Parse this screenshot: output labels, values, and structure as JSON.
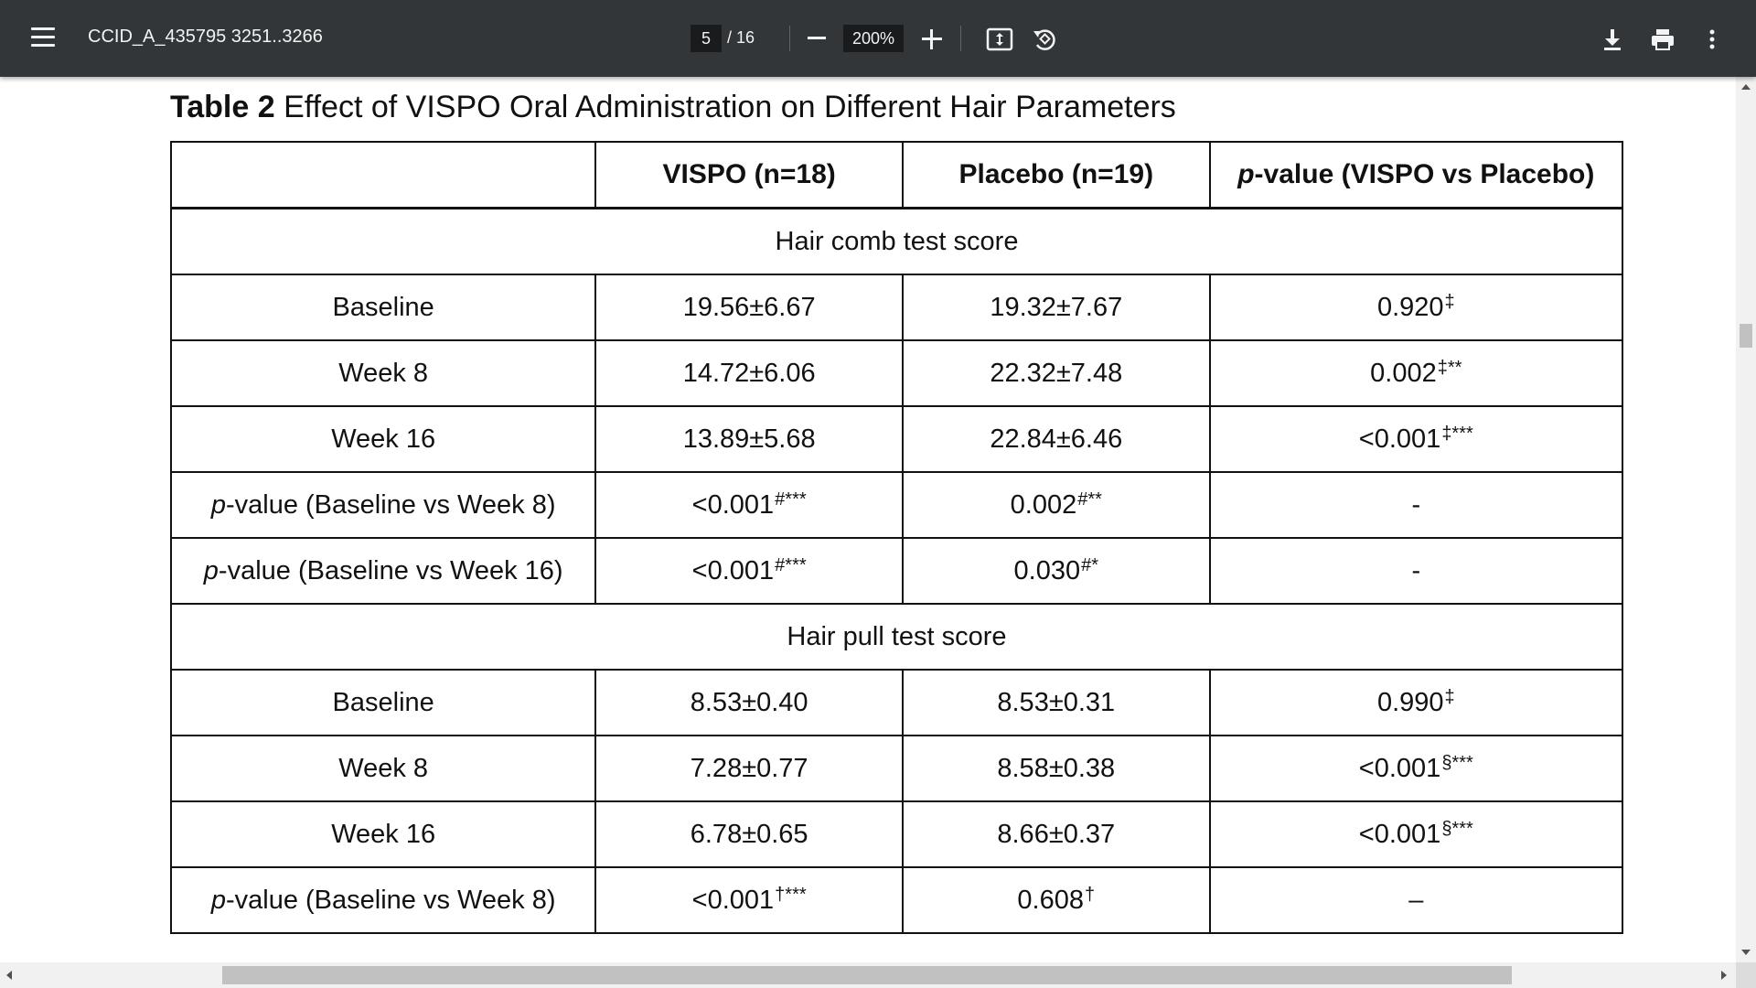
{
  "toolbar": {
    "doc_title": "CCID_A_435795 3251..3266",
    "page_current": "5",
    "page_total": "/ 16",
    "zoom": "200%"
  },
  "icons": [
    "menu-icon",
    "zoom-out-icon",
    "zoom-in-icon",
    "fit-page-icon",
    "rotate-icon",
    "download-icon",
    "print-icon",
    "more-vert-icon"
  ],
  "colors": {
    "toolbar_bg": "#323639",
    "toolbar_text": "#f1f3f4",
    "input_bg": "#191b1c"
  },
  "table": {
    "caption_label": "Table 2",
    "caption_text": "Effect of VISPO Oral Administration on Different Hair Parameters",
    "headers": [
      "",
      "VISPO (n=18)",
      "Placebo (n=19)",
      "p-value (VISPO vs Placebo)"
    ],
    "sections": [
      {
        "title": "Hair comb test score",
        "rows": [
          {
            "label": "Baseline",
            "vispo": "19.56±6.67",
            "vispo_sup": "",
            "placebo": "19.32±7.67",
            "placebo_sup": "",
            "p": "0.920",
            "p_sup": "‡"
          },
          {
            "label": "Week 8",
            "vispo": "14.72±6.06",
            "vispo_sup": "",
            "placebo": "22.32±7.48",
            "placebo_sup": "",
            "p": "0.002",
            "p_sup": "‡**"
          },
          {
            "label": "Week 16",
            "vispo": "13.89±5.68",
            "vispo_sup": "",
            "placebo": "22.84±6.46",
            "placebo_sup": "",
            "p": "<0.001",
            "p_sup": "‡***"
          },
          {
            "label_prefix": "p",
            "label": "-value (Baseline vs Week 8)",
            "vispo": "<0.001",
            "vispo_sup": "#***",
            "placebo": "0.002",
            "placebo_sup": "#**",
            "p": "-",
            "p_sup": ""
          },
          {
            "label_prefix": "p",
            "label": "-value (Baseline vs Week 16)",
            "vispo": "<0.001",
            "vispo_sup": "#***",
            "placebo": "0.030",
            "placebo_sup": "#*",
            "p": "-",
            "p_sup": ""
          }
        ]
      },
      {
        "title": "Hair pull test score",
        "rows": [
          {
            "label": "Baseline",
            "vispo": "8.53±0.40",
            "vispo_sup": "",
            "placebo": "8.53±0.31",
            "placebo_sup": "",
            "p": "0.990",
            "p_sup": "‡"
          },
          {
            "label": "Week 8",
            "vispo": "7.28±0.77",
            "vispo_sup": "",
            "placebo": "8.58±0.38",
            "placebo_sup": "",
            "p": "<0.001",
            "p_sup": "§***"
          },
          {
            "label": "Week 16",
            "vispo": "6.78±0.65",
            "vispo_sup": "",
            "placebo": "8.66±0.37",
            "placebo_sup": "",
            "p": "<0.001",
            "p_sup": "§***"
          },
          {
            "label_prefix": "p",
            "label": "-value (Baseline vs Week 8)",
            "vispo": "<0.001",
            "vispo_sup": "†***",
            "placebo": "0.608",
            "placebo_sup": "†",
            "p": "–",
            "p_sup": ""
          }
        ]
      }
    ]
  }
}
